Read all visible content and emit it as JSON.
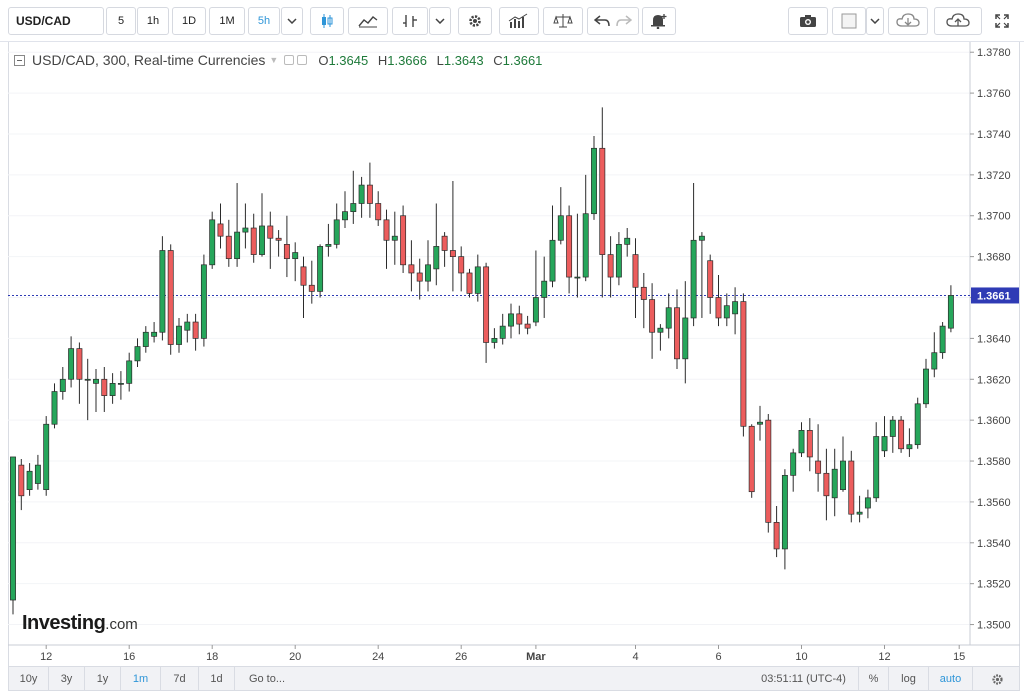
{
  "toolbar": {
    "symbol": "USD/CAD",
    "intervals": [
      "5",
      "1h",
      "1D",
      "1M",
      "5h"
    ],
    "active_interval": "5h"
  },
  "legend": {
    "title": "USD/CAD, 300, Real-time Currencies",
    "open_label": "O",
    "open": "1.3645",
    "high_label": "H",
    "high": "1.3666",
    "low_label": "L",
    "low": "1.3643",
    "close_label": "C",
    "close": "1.3661"
  },
  "logo": {
    "name": "Investing",
    "suffix": ".com"
  },
  "bottom": {
    "ranges": [
      "10y",
      "3y",
      "1y",
      "1m",
      "7d",
      "1d"
    ],
    "active_range": "1m",
    "goto": "Go to...",
    "time": "03:51:11 (UTC-4)",
    "percent": "%",
    "log": "log",
    "auto": "auto"
  },
  "colors": {
    "up": "#26a65b",
    "down": "#ec5d5d",
    "price_line": "#2f3bb5",
    "label_bg": "#2f3bb5"
  },
  "chart_data": {
    "type": "candlestick",
    "symbol": "USD/CAD",
    "ylim": [
      1.349,
      1.3785
    ],
    "yticks": [
      1.35,
      1.352,
      1.354,
      1.356,
      1.358,
      1.36,
      1.362,
      1.364,
      1.366,
      1.368,
      1.37,
      1.372,
      1.374,
      1.376,
      1.378
    ],
    "ytick_labels": [
      "1.3500",
      "1.3520",
      "1.3540",
      "1.3560",
      "1.3580",
      "1.3600",
      "1.3620",
      "1.3640",
      "1.3660",
      "1.3680",
      "1.3700",
      "1.3720",
      "1.3740",
      "1.3760",
      "1.3780"
    ],
    "last_price": 1.3661,
    "last_price_label": "1.3661",
    "xtick_labels": [
      "12",
      "16",
      "18",
      "20",
      "24",
      "26",
      "Mar",
      "4",
      "6",
      "10",
      "12",
      "15"
    ],
    "xtick_bar_index": [
      4,
      14,
      24,
      34,
      44,
      54,
      63,
      75,
      85,
      95,
      105,
      114
    ],
    "bars_ohlc": [
      [
        1.3512,
        1.3582,
        1.3505,
        1.3582
      ],
      [
        1.3578,
        1.3563,
        1.3556,
        1.3581
      ],
      [
        1.3566,
        1.3575,
        1.3563,
        1.3579
      ],
      [
        1.3569,
        1.3578,
        1.3566,
        1.3583
      ],
      [
        1.3566,
        1.3598,
        1.3563,
        1.3602
      ],
      [
        1.3598,
        1.3614,
        1.3596,
        1.3618
      ],
      [
        1.3614,
        1.362,
        1.361,
        1.3626
      ],
      [
        1.362,
        1.3635,
        1.3616,
        1.3641
      ],
      [
        1.3635,
        1.362,
        1.3608,
        1.3638
      ],
      [
        1.362,
        1.362,
        1.36,
        1.363
      ],
      [
        1.3618,
        1.362,
        1.3604,
        1.3625
      ],
      [
        1.362,
        1.3612,
        1.3604,
        1.3626
      ],
      [
        1.3612,
        1.3618,
        1.3608,
        1.3623
      ],
      [
        1.3618,
        1.3618,
        1.361,
        1.3624
      ],
      [
        1.3618,
        1.3629,
        1.3614,
        1.3633
      ],
      [
        1.3629,
        1.3636,
        1.3626,
        1.364
      ],
      [
        1.3636,
        1.3643,
        1.3633,
        1.3646
      ],
      [
        1.3641,
        1.3643,
        1.3638,
        1.3648
      ],
      [
        1.3643,
        1.3683,
        1.3639,
        1.369
      ],
      [
        1.3683,
        1.3637,
        1.3632,
        1.3686
      ],
      [
        1.3637,
        1.3646,
        1.3633,
        1.365
      ],
      [
        1.3644,
        1.3648,
        1.3638,
        1.3652
      ],
      [
        1.3648,
        1.364,
        1.3634,
        1.3652
      ],
      [
        1.364,
        1.3676,
        1.3636,
        1.3681
      ],
      [
        1.3676,
        1.3698,
        1.3674,
        1.3702
      ],
      [
        1.3696,
        1.369,
        1.3684,
        1.3706
      ],
      [
        1.369,
        1.3679,
        1.3675,
        1.3698
      ],
      [
        1.3679,
        1.3692,
        1.3675,
        1.3716
      ],
      [
        1.3692,
        1.3694,
        1.3684,
        1.3706
      ],
      [
        1.3694,
        1.3681,
        1.3677,
        1.3701
      ],
      [
        1.3681,
        1.3695,
        1.368,
        1.3711
      ],
      [
        1.3695,
        1.3689,
        1.3674,
        1.3702
      ],
      [
        1.3689,
        1.3688,
        1.368,
        1.3693
      ],
      [
        1.3686,
        1.3679,
        1.367,
        1.37
      ],
      [
        1.3679,
        1.3682,
        1.3668,
        1.3687
      ],
      [
        1.3675,
        1.3666,
        1.365,
        1.368
      ],
      [
        1.3666,
        1.3663,
        1.3657,
        1.3678
      ],
      [
        1.3663,
        1.3685,
        1.366,
        1.3686
      ],
      [
        1.3685,
        1.3686,
        1.368,
        1.3696
      ],
      [
        1.3686,
        1.3698,
        1.3684,
        1.3706
      ],
      [
        1.3698,
        1.3702,
        1.3694,
        1.3712
      ],
      [
        1.3702,
        1.3706,
        1.3696,
        1.3722
      ],
      [
        1.3706,
        1.3715,
        1.3699,
        1.3719
      ],
      [
        1.3715,
        1.3706,
        1.3699,
        1.3726
      ],
      [
        1.3706,
        1.3698,
        1.3695,
        1.3712
      ],
      [
        1.3698,
        1.3688,
        1.3674,
        1.3703
      ],
      [
        1.3688,
        1.369,
        1.3676,
        1.3702
      ],
      [
        1.37,
        1.3676,
        1.3672,
        1.3705
      ],
      [
        1.3676,
        1.3672,
        1.3663,
        1.3688
      ],
      [
        1.3672,
        1.3668,
        1.3659,
        1.3679
      ],
      [
        1.3668,
        1.3676,
        1.3663,
        1.3688
      ],
      [
        1.3674,
        1.3685,
        1.3666,
        1.3706
      ],
      [
        1.369,
        1.3683,
        1.3675,
        1.3692
      ],
      [
        1.3683,
        1.368,
        1.3663,
        1.3717
      ],
      [
        1.368,
        1.3672,
        1.3663,
        1.3685
      ],
      [
        1.3672,
        1.3662,
        1.366,
        1.3674
      ],
      [
        1.3662,
        1.3675,
        1.3658,
        1.3681
      ],
      [
        1.3675,
        1.3638,
        1.3628,
        1.3677
      ],
      [
        1.3638,
        1.364,
        1.3635,
        1.3645
      ],
      [
        1.364,
        1.3646,
        1.3637,
        1.3652
      ],
      [
        1.3646,
        1.3652,
        1.364,
        1.3657
      ],
      [
        1.3652,
        1.3647,
        1.3642,
        1.3656
      ],
      [
        1.3647,
        1.3645,
        1.3642,
        1.3651
      ],
      [
        1.3648,
        1.366,
        1.3646,
        1.3683
      ],
      [
        1.366,
        1.3668,
        1.365,
        1.368
      ],
      [
        1.3668,
        1.3688,
        1.3665,
        1.3705
      ],
      [
        1.3688,
        1.37,
        1.3686,
        1.3714
      ],
      [
        1.37,
        1.367,
        1.3662,
        1.3705
      ],
      [
        1.367,
        1.367,
        1.366,
        1.3701
      ],
      [
        1.367,
        1.3701,
        1.3668,
        1.372
      ],
      [
        1.3701,
        1.3733,
        1.3698,
        1.3739
      ],
      [
        1.3733,
        1.3681,
        1.366,
        1.3753
      ],
      [
        1.3681,
        1.367,
        1.366,
        1.369
      ],
      [
        1.367,
        1.3686,
        1.3666,
        1.3692
      ],
      [
        1.3686,
        1.3689,
        1.368,
        1.3694
      ],
      [
        1.3681,
        1.3665,
        1.365,
        1.3689
      ],
      [
        1.3665,
        1.3659,
        1.3645,
        1.3672
      ],
      [
        1.3659,
        1.3643,
        1.363,
        1.3667
      ],
      [
        1.3643,
        1.3645,
        1.3634,
        1.3647
      ],
      [
        1.3645,
        1.3655,
        1.364,
        1.3662
      ],
      [
        1.3655,
        1.363,
        1.3625,
        1.3664
      ],
      [
        1.363,
        1.365,
        1.3618,
        1.3668
      ],
      [
        1.365,
        1.3688,
        1.3646,
        1.3716
      ],
      [
        1.3688,
        1.369,
        1.365,
        1.3692
      ],
      [
        1.3678,
        1.366,
        1.3652,
        1.3681
      ],
      [
        1.366,
        1.365,
        1.3646,
        1.3671
      ],
      [
        1.365,
        1.3656,
        1.3646,
        1.3662
      ],
      [
        1.3652,
        1.3658,
        1.3642,
        1.3665
      ],
      [
        1.3658,
        1.3597,
        1.3592,
        1.3662
      ],
      [
        1.3597,
        1.3565,
        1.3562,
        1.3598
      ],
      [
        1.3598,
        1.3599,
        1.359,
        1.3607
      ],
      [
        1.36,
        1.355,
        1.3545,
        1.3603
      ],
      [
        1.355,
        1.3537,
        1.3533,
        1.3558
      ],
      [
        1.3537,
        1.3573,
        1.3527,
        1.3576
      ],
      [
        1.3573,
        1.3584,
        1.3565,
        1.3586
      ],
      [
        1.3584,
        1.3595,
        1.3582,
        1.3599
      ],
      [
        1.3595,
        1.3582,
        1.3575,
        1.3601
      ],
      [
        1.358,
        1.3574,
        1.3565,
        1.3598
      ],
      [
        1.3574,
        1.3563,
        1.3551,
        1.3586
      ],
      [
        1.3562,
        1.3576,
        1.3553,
        1.3586
      ],
      [
        1.3566,
        1.358,
        1.3565,
        1.3592
      ],
      [
        1.358,
        1.3554,
        1.355,
        1.3585
      ],
      [
        1.3554,
        1.3555,
        1.355,
        1.3563
      ],
      [
        1.3557,
        1.3562,
        1.3552,
        1.3566
      ],
      [
        1.3562,
        1.3592,
        1.356,
        1.3599
      ],
      [
        1.3585,
        1.3592,
        1.3582,
        1.3602
      ],
      [
        1.3592,
        1.36,
        1.3584,
        1.3602
      ],
      [
        1.36,
        1.3586,
        1.3584,
        1.3602
      ],
      [
        1.3586,
        1.3588,
        1.3582,
        1.3596
      ],
      [
        1.3588,
        1.3608,
        1.3586,
        1.3611
      ],
      [
        1.3608,
        1.3625,
        1.3606,
        1.363
      ],
      [
        1.3625,
        1.3633,
        1.3621,
        1.3643
      ],
      [
        1.3633,
        1.3646,
        1.363,
        1.3648
      ],
      [
        1.3645,
        1.3661,
        1.3643,
        1.3666
      ]
    ]
  }
}
